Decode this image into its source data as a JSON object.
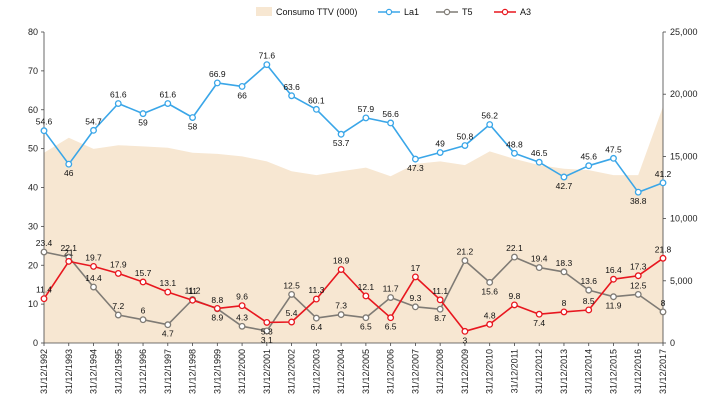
{
  "chart_data": {
    "type": "line",
    "title": "",
    "xlabel": "",
    "ylabel": "",
    "categories": [
      "31/12/1992",
      "31/12/1993",
      "31/12/1994",
      "31/12/1995",
      "31/12/1996",
      "31/12/1997",
      "31/12/1998",
      "31/12/1999",
      "31/12/2000",
      "31/12/2001",
      "31/12/2002",
      "31/12/2003",
      "31/12/2004",
      "31/12/2005",
      "31/12/2006",
      "31/12/2007",
      "31/12/2008",
      "31/12/2009",
      "31/12/2010",
      "31/12/2011",
      "31/12/2012",
      "31/12/2013",
      "31/12/2014",
      "31/12/2015",
      "31/12/2016",
      "31/12/2017"
    ],
    "ylim": [
      0,
      80
    ],
    "y_ticks": [
      "0",
      "10",
      "20",
      "30",
      "40",
      "50",
      "60",
      "70",
      "80"
    ],
    "y2lim": [
      0,
      25000
    ],
    "y2_ticks": [
      "0",
      "5,000",
      "10,000",
      "15,000",
      "20,000",
      "25,000"
    ],
    "legend_position": "top",
    "area": {
      "name": "Consumo TTV (000)",
      "color": "#f7e7d2",
      "axis": "right",
      "values": [
        15300,
        16500,
        15600,
        15900,
        15800,
        15700,
        15300,
        15200,
        15000,
        14600,
        13800,
        13500,
        13800,
        14100,
        13400,
        14400,
        14600,
        14300,
        15400,
        14800,
        14300,
        14000,
        13900,
        13500,
        13500,
        19000
      ]
    },
    "series": [
      {
        "name": "La1",
        "color": "#3aa6e8",
        "marker": "circle",
        "values": [
          54.6,
          46,
          54.7,
          61.6,
          59,
          61.6,
          58,
          66.9,
          66,
          71.6,
          63.6,
          60.1,
          53.7,
          57.9,
          56.6,
          47.3,
          49,
          50.8,
          56.2,
          48.8,
          46.5,
          42.7,
          45.6,
          47.5,
          38.8,
          41.2
        ],
        "labels": [
          "54.6",
          "46",
          "54.7",
          "61.6",
          "59",
          "61.6",
          "58",
          "66.9",
          "66",
          "71.6",
          "63.6",
          "60.1",
          "53.7",
          "57.9",
          "56.6",
          "47.3",
          "49",
          "50.8",
          "56.2",
          "48.8",
          "46.5",
          "42.7",
          "45.6",
          "47.5",
          "38.8",
          "41.2"
        ]
      },
      {
        "name": "T5",
        "color": "#7f7b75",
        "marker": "circle",
        "values": [
          23.4,
          22.1,
          14.4,
          7.2,
          6,
          4.7,
          11.2,
          8.8,
          4.3,
          3.1,
          12.5,
          6.4,
          7.3,
          6.5,
          11.7,
          9.3,
          8.7,
          21.2,
          15.6,
          22.1,
          19.4,
          18.3,
          13.6,
          11.9,
          12.5,
          8
        ],
        "labels": [
          "23.4",
          "22.1",
          "14.4",
          "7.2",
          "6",
          "4.7",
          "11.2",
          "8.8",
          "4.3",
          "3.1",
          "12.5",
          "6.4",
          "7.3",
          "6.5",
          "11.7",
          "9.3",
          "8.7",
          "21.2",
          "15.6",
          "22.1",
          "19.4",
          "18.3",
          "13.6",
          "11.9",
          "12.5",
          "8"
        ]
      },
      {
        "name": "A3",
        "color": "#e8171f",
        "marker": "circle",
        "values": [
          11.4,
          21,
          19.7,
          17.9,
          15.7,
          13.1,
          11,
          8.9,
          9.6,
          5.3,
          5.4,
          11.3,
          18.9,
          12.1,
          6.5,
          17,
          11.1,
          3,
          4.8,
          9.8,
          7.4,
          8,
          8.5,
          16.4,
          17.3,
          21.8
        ],
        "labels": [
          "11.4",
          "21",
          "19.7",
          "17.9",
          "15.7",
          "13.1",
          "11",
          "8.9",
          "9.6",
          "5.3",
          "5.4",
          "11.3",
          "18.9",
          "12.1",
          "6.5",
          "17",
          "11.1",
          "3",
          "4.8",
          "9.8",
          "7.4",
          "8",
          "8.5",
          "16.4",
          "17.3",
          "21.8"
        ]
      }
    ]
  }
}
